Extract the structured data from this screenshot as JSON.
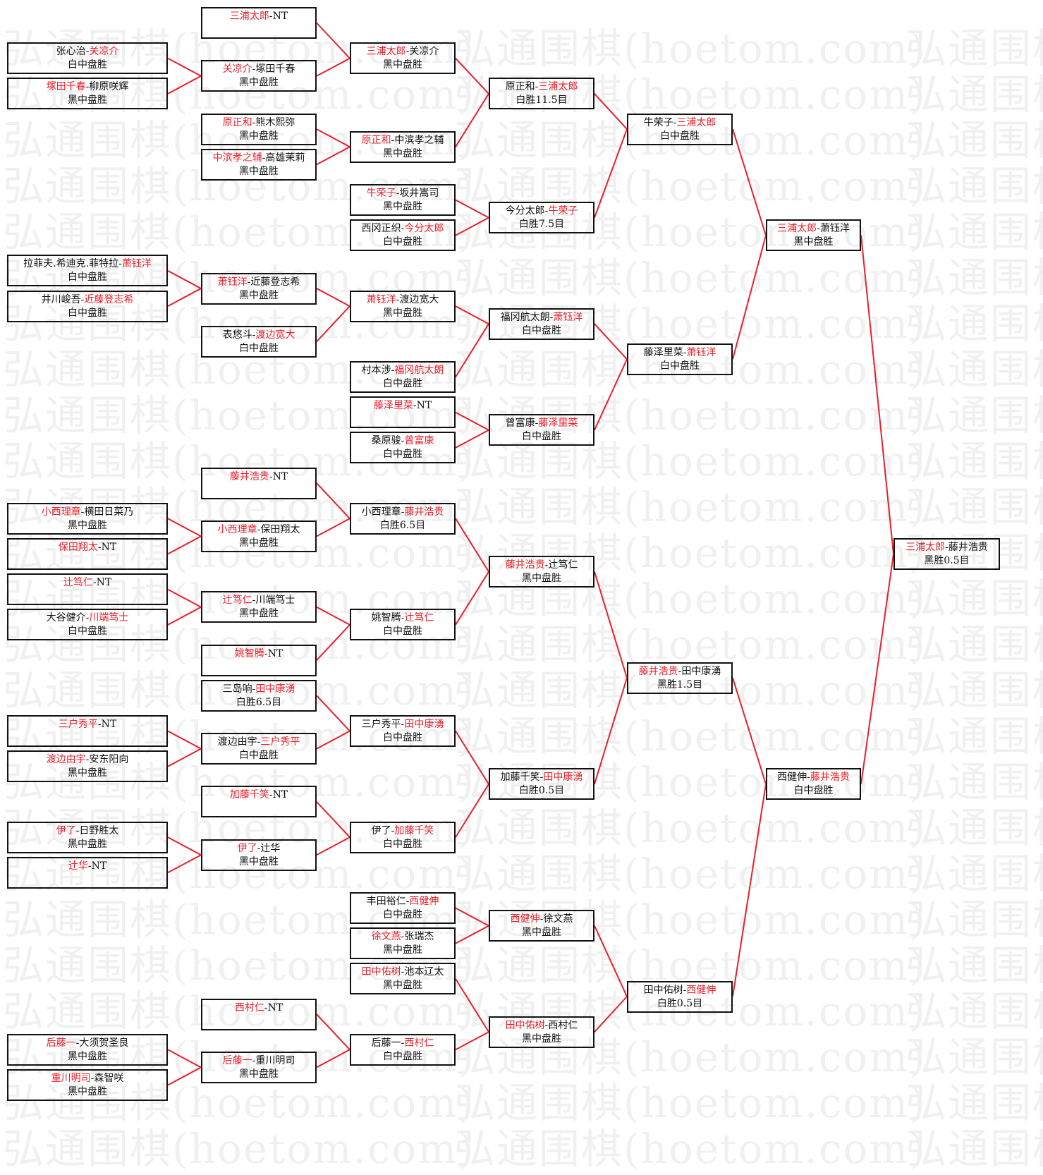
{
  "watermark": "弘通围棋(hoetom.com)",
  "colors": {
    "winner": "#e8202a",
    "connector": "#e8202a",
    "border": "#111111",
    "watermark": "#f0f0f0"
  },
  "separator": "-",
  "rounds": [
    {
      "matches": [
        {
          "p1": "张心治",
          "p2": "关凉介",
          "winner": 2,
          "result": "白中盘胜"
        },
        {
          "p1": "塚田千春",
          "p2": "柳原咲辉",
          "winner": 1,
          "result": "黑中盘胜"
        },
        {
          "p1": "拉菲夫.希迪克.菲特拉",
          "p2": "萧钰洋",
          "winner": 2,
          "result": "白中盘胜"
        },
        {
          "p1": "井川峻吾",
          "p2": "近藤登志希",
          "winner": 2,
          "result": "白中盘胜"
        },
        {
          "p1": "小西理章",
          "p2": "横田日菜乃",
          "winner": 1,
          "result": "黑中盘胜"
        },
        {
          "p1": "保田翔太",
          "p2": "NT",
          "winner": 1,
          "result": ""
        },
        {
          "p1": "辻笃仁",
          "p2": "NT",
          "winner": 1,
          "result": ""
        },
        {
          "p1": "大谷健介",
          "p2": "川端笃士",
          "winner": 2,
          "result": "白中盘胜"
        },
        {
          "p1": "三户秀平",
          "p2": "NT",
          "winner": 1,
          "result": ""
        },
        {
          "p1": "渡边由宇",
          "p2": "安东阳向",
          "winner": 1,
          "result": "黑中盘胜"
        },
        {
          "p1": "伊了",
          "p2": "日野胜太",
          "winner": 1,
          "result": "黑中盘胜"
        },
        {
          "p1": "辻华",
          "p2": "NT",
          "winner": 1,
          "result": ""
        },
        {
          "p1": "后藤一",
          "p2": "大须贺圣良",
          "winner": 1,
          "result": "黑中盘胜"
        },
        {
          "p1": "重川明司",
          "p2": "森智咲",
          "winner": 1,
          "result": "黑中盘胜"
        }
      ]
    },
    {
      "matches": [
        {
          "p1": "三浦太郎",
          "p2": "NT",
          "winner": 1,
          "result": ""
        },
        {
          "p1": "关凉介",
          "p2": "塚田千春",
          "winner": 1,
          "result": "黑中盘胜"
        },
        {
          "p1": "原正和",
          "p2": "熊木熙弥",
          "winner": 1,
          "result": "黑中盘胜"
        },
        {
          "p1": "中滨孝之辅",
          "p2": "高雄茉莉",
          "winner": 1,
          "result": "黑中盘胜"
        },
        {
          "p1": "萧钰洋",
          "p2": "近藤登志希",
          "winner": 1,
          "result": "黑中盘胜"
        },
        {
          "p1": "表悠斗",
          "p2": "渡边宽大",
          "winner": 2,
          "result": "白中盘胜"
        },
        {
          "p1": "藤井浩贵",
          "p2": "NT",
          "winner": 1,
          "result": ""
        },
        {
          "p1": "小西理章",
          "p2": "保田翔太",
          "winner": 1,
          "result": "黑中盘胜"
        },
        {
          "p1": "辻笃仁",
          "p2": "川端笃士",
          "winner": 1,
          "result": "黑中盘胜"
        },
        {
          "p1": "姚智腾",
          "p2": "NT",
          "winner": 1,
          "result": ""
        },
        {
          "p1": "三岛响",
          "p2": "田中康湧",
          "winner": 2,
          "result": "白胜6.5目"
        },
        {
          "p1": "渡边由宇",
          "p2": "三户秀平",
          "winner": 2,
          "result": "白中盘胜"
        },
        {
          "p1": "加藤千笑",
          "p2": "NT",
          "winner": 1,
          "result": ""
        },
        {
          "p1": "伊了",
          "p2": "辻华",
          "winner": 1,
          "result": "黑中盘胜"
        },
        {
          "p1": "西村仁",
          "p2": "NT",
          "winner": 1,
          "result": ""
        },
        {
          "p1": "后藤一",
          "p2": "重川明司",
          "winner": 1,
          "result": "黑中盘胜"
        }
      ]
    },
    {
      "matches": [
        {
          "p1": "三浦太郎",
          "p2": "关凉介",
          "winner": 1,
          "result": "黑中盘胜"
        },
        {
          "p1": "原正和",
          "p2": "中滨孝之辅",
          "winner": 1,
          "result": "黑中盘胜"
        },
        {
          "p1": "牛荣子",
          "p2": "坂井嵩司",
          "winner": 1,
          "result": "黑中盘胜"
        },
        {
          "p1": "西冈正织",
          "p2": "今分太郎",
          "winner": 2,
          "result": "白中盘胜"
        },
        {
          "p1": "萧钰洋",
          "p2": "渡边宽大",
          "winner": 1,
          "result": "黑中盘胜"
        },
        {
          "p1": "村本涉",
          "p2": "福冈航太朗",
          "winner": 2,
          "result": "白中盘胜"
        },
        {
          "p1": "藤泽里菜",
          "p2": "NT",
          "winner": 1,
          "result": ""
        },
        {
          "p1": "桑原骏",
          "p2": "曾富康",
          "winner": 2,
          "result": "白中盘胜"
        },
        {
          "p1": "小西理章",
          "p2": "藤井浩贵",
          "winner": 2,
          "result": "白胜6.5目"
        },
        {
          "p1": "姚智腾",
          "p2": "辻笃仁",
          "winner": 2,
          "result": "白中盘胜"
        },
        {
          "p1": "三户秀平",
          "p2": "田中康湧",
          "winner": 2,
          "result": "白中盘胜"
        },
        {
          "p1": "伊了",
          "p2": "加藤千笑",
          "winner": 2,
          "result": "白中盘胜"
        },
        {
          "p1": "丰田裕仁",
          "p2": "西健伸",
          "winner": 2,
          "result": "白中盘胜"
        },
        {
          "p1": "徐文燕",
          "p2": "张瑞杰",
          "winner": 1,
          "result": "黑中盘胜"
        },
        {
          "p1": "田中佑树",
          "p2": "池本辽太",
          "winner": 1,
          "result": "黑中盘胜"
        },
        {
          "p1": "后藤一",
          "p2": "西村仁",
          "winner": 2,
          "result": "白中盘胜"
        }
      ]
    },
    {
      "matches": [
        {
          "p1": "原正和",
          "p2": "三浦太郎",
          "winner": 2,
          "result": "白胜11.5目"
        },
        {
          "p1": "今分太郎",
          "p2": "牛荣子",
          "winner": 2,
          "result": "白胜7.5目"
        },
        {
          "p1": "福冈航太朗",
          "p2": "萧钰洋",
          "winner": 2,
          "result": "白中盘胜"
        },
        {
          "p1": "曾富康",
          "p2": "藤泽里菜",
          "winner": 2,
          "result": "白中盘胜"
        },
        {
          "p1": "藤井浩贵",
          "p2": "辻笃仁",
          "winner": 1,
          "result": "黑中盘胜"
        },
        {
          "p1": "加藤千笑",
          "p2": "田中康湧",
          "winner": 2,
          "result": "白胜0.5目"
        },
        {
          "p1": "西健伸",
          "p2": "徐文燕",
          "winner": 1,
          "result": "黑中盘胜"
        },
        {
          "p1": "田中佑树",
          "p2": "西村仁",
          "winner": 1,
          "result": "黑中盘胜"
        }
      ]
    },
    {
      "matches": [
        {
          "p1": "牛荣子",
          "p2": "三浦太郎",
          "winner": 2,
          "result": "白中盘胜"
        },
        {
          "p1": "藤泽里菜",
          "p2": "萧钰洋",
          "winner": 2,
          "result": "白中盘胜"
        },
        {
          "p1": "藤井浩贵",
          "p2": "田中康湧",
          "winner": 1,
          "result": "黑胜1.5目"
        },
        {
          "p1": "田中佑树",
          "p2": "西健伸",
          "winner": 2,
          "result": "白胜0.5目"
        }
      ]
    },
    {
      "matches": [
        {
          "p1": "三浦太郎",
          "p2": "萧钰洋",
          "winner": 1,
          "result": "黑中盘胜"
        },
        {
          "p1": "西健伸",
          "p2": "藤井浩贵",
          "winner": 2,
          "result": "白中盘胜"
        }
      ]
    },
    {
      "matches": [
        {
          "p1": "三浦太郎",
          "p2": "藤井浩贵",
          "winner": 1,
          "result": "黑胜0.5目"
        }
      ]
    }
  ]
}
